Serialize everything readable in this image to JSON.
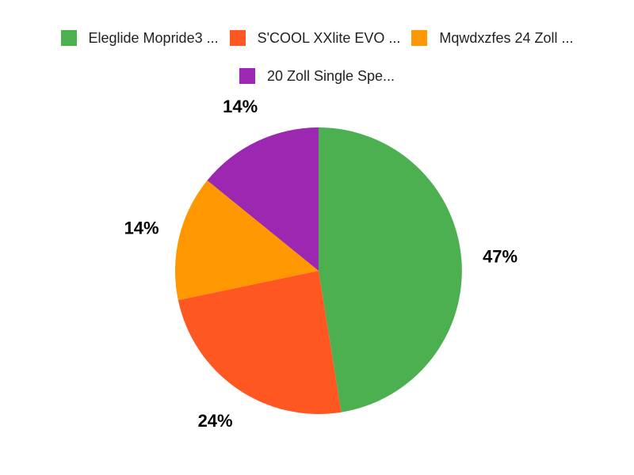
{
  "chart_data": {
    "type": "pie",
    "title": "",
    "legend_position": "top",
    "background": "#ffffff",
    "text_color": "#222222",
    "slice_label_color": "#000000",
    "start_angle_deg": 0,
    "direction": "clockwise",
    "label_format": "percent",
    "series": [
      {
        "label": "Eleglide Mopride3 ...",
        "percent": 47,
        "percent_label": "47%",
        "color": "#4caf50"
      },
      {
        "label": "S'COOL XXlite EVO ...",
        "percent": 24,
        "percent_label": "24%",
        "color": "#ff5722"
      },
      {
        "label": "Mqwdxzfes 24 Zoll ...",
        "percent": 14,
        "percent_label": "14%",
        "color": "#ff9800"
      },
      {
        "label": "20 Zoll Single Spe...",
        "percent": 14,
        "percent_label": "14%",
        "color": "#9c27b0"
      }
    ]
  }
}
